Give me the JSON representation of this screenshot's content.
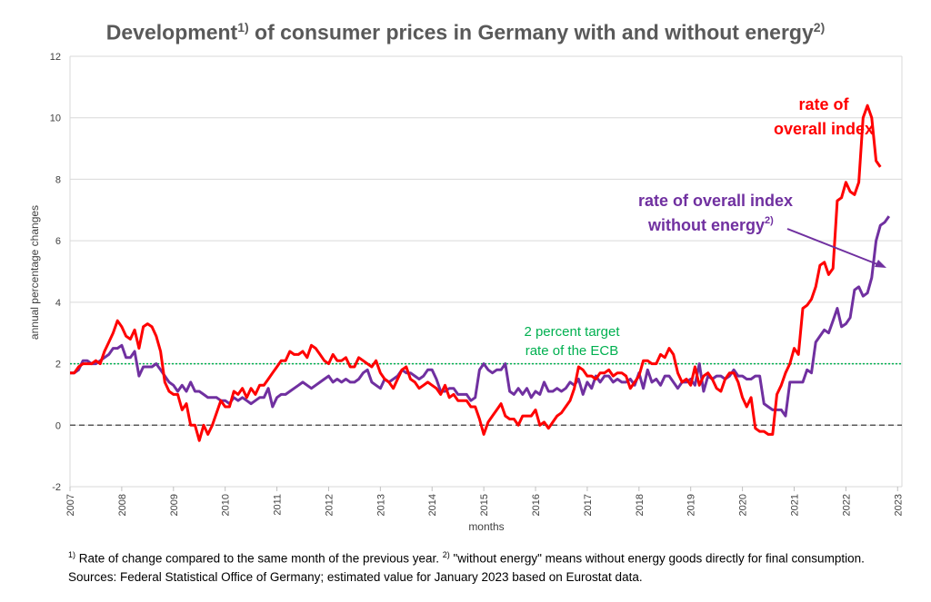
{
  "chart_data": {
    "type": "line",
    "title": "Development",
    "title_sup": "1)",
    "title_rest": " of consumer prices in Germany with and without energy",
    "title_sup2": "2)",
    "xlabel": "months",
    "ylabel": "annual percentage changes",
    "ylim": [
      -2,
      12
    ],
    "yticks": [
      -2,
      0,
      2,
      4,
      6,
      8,
      10,
      12
    ],
    "xlim": [
      2007,
      2023.083
    ],
    "xticks": [
      "2007",
      "2008",
      "2009",
      "2010",
      "2011",
      "2012",
      "2013",
      "2014",
      "2015",
      "2016",
      "2017",
      "2018",
      "2019",
      "2020",
      "2021",
      "2022",
      "2023"
    ],
    "grid": "horizontal",
    "reference_lines": [
      {
        "value": 2,
        "label_line1": "2 percent target",
        "label_line2": "rate of the ECB",
        "color": "#00b050"
      },
      {
        "value": 0,
        "color": "#595959"
      }
    ],
    "series": [
      {
        "name": "rate of overall index",
        "color": "#ff0000",
        "start": "2007-01",
        "values": [
          1.7,
          1.7,
          1.9,
          2.0,
          2.0,
          2.0,
          2.1,
          2.0,
          2.4,
          2.7,
          3.0,
          3.4,
          3.2,
          2.9,
          2.8,
          3.1,
          2.5,
          3.2,
          3.3,
          3.2,
          2.9,
          2.4,
          1.4,
          1.1,
          1.0,
          1.0,
          0.5,
          0.7,
          0.0,
          0.0,
          -0.5,
          0.0,
          -0.3,
          0.0,
          0.4,
          0.8,
          0.6,
          0.6,
          1.1,
          1.0,
          1.2,
          0.9,
          1.2,
          1.0,
          1.3,
          1.3,
          1.5,
          1.7,
          1.9,
          2.1,
          2.1,
          2.4,
          2.3,
          2.3,
          2.4,
          2.2,
          2.6,
          2.5,
          2.3,
          2.1,
          2.0,
          2.3,
          2.1,
          2.1,
          2.2,
          1.9,
          1.9,
          2.2,
          2.1,
          2.0,
          1.9,
          2.1,
          1.7,
          1.5,
          1.4,
          1.2,
          1.5,
          1.8,
          1.9,
          1.5,
          1.4,
          1.2,
          1.3,
          1.4,
          1.3,
          1.2,
          1.0,
          1.3,
          0.9,
          1.0,
          0.8,
          0.8,
          0.8,
          0.6,
          0.6,
          0.2,
          -0.3,
          0.1,
          0.3,
          0.5,
          0.7,
          0.3,
          0.2,
          0.2,
          0.0,
          0.3,
          0.3,
          0.3,
          0.5,
          0.0,
          0.1,
          -0.1,
          0.1,
          0.3,
          0.4,
          0.6,
          0.8,
          1.2,
          1.9,
          1.8,
          1.6,
          1.6,
          1.5,
          1.7,
          1.7,
          1.8,
          1.6,
          1.7,
          1.7,
          1.6,
          1.2,
          1.4,
          1.6,
          2.1,
          2.1,
          2.0,
          2.0,
          2.3,
          2.2,
          2.5,
          2.3,
          1.7,
          1.4,
          1.5,
          1.3,
          1.9,
          1.3,
          1.6,
          1.7,
          1.5,
          1.2,
          1.1,
          1.5,
          1.7,
          1.7,
          1.4,
          0.9,
          0.6,
          0.9,
          -0.1,
          -0.2,
          -0.2,
          -0.3,
          -0.3,
          1.0,
          1.3,
          1.7,
          2.0,
          2.5,
          2.3,
          3.8,
          3.9,
          4.1,
          4.5,
          5.2,
          5.3,
          4.9,
          5.1,
          7.3,
          7.4,
          7.9,
          7.6,
          7.5,
          7.9,
          10.0,
          10.4,
          10.0,
          8.6,
          8.4
        ]
      },
      {
        "name": "rate of overall index without energy",
        "name_sup": "2)",
        "color": "#7030a0",
        "start": "2007-01",
        "values": [
          1.7,
          1.7,
          1.8,
          2.1,
          2.1,
          2.0,
          2.0,
          2.1,
          2.2,
          2.3,
          2.5,
          2.5,
          2.6,
          2.2,
          2.2,
          2.4,
          1.6,
          1.9,
          1.9,
          1.9,
          2.0,
          1.8,
          1.6,
          1.4,
          1.3,
          1.1,
          1.3,
          1.1,
          1.4,
          1.1,
          1.1,
          1.0,
          0.9,
          0.9,
          0.9,
          0.8,
          0.8,
          0.7,
          0.9,
          0.8,
          0.9,
          0.8,
          0.7,
          0.8,
          0.9,
          0.9,
          1.2,
          0.6,
          0.9,
          1.0,
          1.0,
          1.1,
          1.2,
          1.3,
          1.4,
          1.3,
          1.2,
          1.3,
          1.4,
          1.5,
          1.6,
          1.4,
          1.5,
          1.4,
          1.5,
          1.4,
          1.4,
          1.5,
          1.7,
          1.8,
          1.4,
          1.3,
          1.2,
          1.5,
          1.4,
          1.5,
          1.6,
          1.8,
          1.7,
          1.7,
          1.6,
          1.5,
          1.6,
          1.8,
          1.8,
          1.5,
          1.1,
          1.1,
          1.2,
          1.2,
          1.0,
          1.0,
          1.0,
          0.8,
          0.9,
          1.8,
          2.0,
          1.8,
          1.7,
          1.8,
          1.8,
          2.0,
          1.1,
          1.0,
          1.2,
          1.0,
          1.2,
          0.9,
          1.1,
          1.0,
          1.4,
          1.1,
          1.1,
          1.2,
          1.1,
          1.2,
          1.4,
          1.3,
          1.5,
          1.0,
          1.4,
          1.2,
          1.6,
          1.4,
          1.6,
          1.6,
          1.4,
          1.5,
          1.4,
          1.4,
          1.5,
          1.3,
          1.7,
          1.2,
          1.8,
          1.4,
          1.5,
          1.3,
          1.6,
          1.6,
          1.4,
          1.2,
          1.4,
          1.4,
          1.5,
          1.3,
          2.0,
          1.1,
          1.6,
          1.5,
          1.6,
          1.6,
          1.5,
          1.6,
          1.8,
          1.6,
          1.6,
          1.5,
          1.5,
          1.6,
          1.6,
          0.7,
          0.6,
          0.5,
          0.5,
          0.5,
          0.3,
          1.4,
          1.4,
          1.4,
          1.4,
          1.8,
          1.7,
          2.7,
          2.9,
          3.1,
          3.0,
          3.4,
          3.8,
          3.2,
          3.3,
          3.5,
          4.4,
          4.5,
          4.2,
          4.3,
          4.8,
          6.0,
          6.5,
          6.6,
          6.8
        ]
      }
    ]
  },
  "annotations": {
    "overall_line1": "rate of",
    "overall_line2": "overall index",
    "without_line1": "rate of overall index",
    "without_line2": "without energy",
    "without_sup": "2)"
  },
  "footnote": {
    "sup1": "1)",
    "text1": " Rate of change compared to the same month of the previous year. ",
    "sup2": "2)",
    "text2": " \"without energy\" means without energy goods directly for final consumption.",
    "line2": "Sources: Federal Statistical Office of Germany; estimated value for January 2023 based on Eurostat data."
  }
}
